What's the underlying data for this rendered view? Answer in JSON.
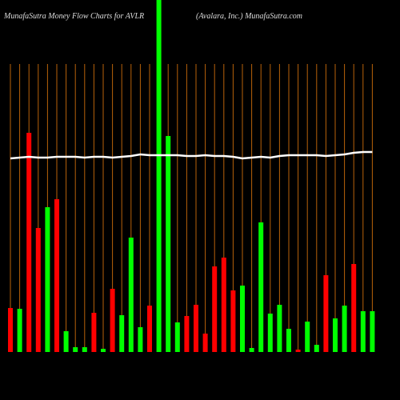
{
  "chart_data": {
    "type": "bar",
    "title": "MunafaSutra  Money Flow  Charts for AVLR",
    "subtitle": "(Avalara,  Inc.) MunafaSutra.com",
    "categories": [
      null,
      null,
      null,
      null,
      null,
      null,
      null,
      null,
      null,
      null,
      null,
      null,
      null,
      null,
      null,
      null,
      null,
      null,
      null,
      null,
      null,
      null,
      null,
      null,
      null,
      null,
      null,
      null,
      null,
      null,
      null,
      null,
      null,
      null,
      null,
      null,
      null,
      null,
      null,
      null
    ],
    "values": [
      55,
      54,
      274,
      155,
      181,
      191,
      26,
      6,
      6,
      49,
      4,
      79,
      46,
      143,
      31,
      58,
      440,
      270,
      37,
      45,
      59,
      23,
      107,
      118,
      77,
      83,
      5,
      162,
      48,
      59,
      29,
      3,
      38,
      9,
      96,
      42,
      58,
      110,
      51,
      51
    ],
    "colors": [
      "#ff0000",
      "#00ff00",
      "#ff0000",
      "#ff0000",
      "#00ff00",
      "#ff0000",
      "#00ff00",
      "#00ff00",
      "#00ff00",
      "#ff0000",
      "#00ff00",
      "#ff0000",
      "#00ff00",
      "#00ff00",
      "#00ff00",
      "#ff0000",
      "#00ff00",
      "#00ff00",
      "#00ff00",
      "#ff0000",
      "#ff0000",
      "#ff0000",
      "#ff0000",
      "#ff0000",
      "#ff0000",
      "#00ff00",
      "#00ff00",
      "#00ff00",
      "#00ff00",
      "#00ff00",
      "#00ff00",
      "#ff0000",
      "#00ff00",
      "#00ff00",
      "#ff0000",
      "#00ff00",
      "#00ff00",
      "#ff0000",
      "#00ff00",
      "#00ff00"
    ],
    "line": {
      "color": "#ffffff",
      "values": [
        242,
        243,
        244,
        243,
        243,
        244,
        244,
        244,
        243,
        244,
        244,
        243,
        244,
        245,
        247,
        246,
        246,
        246,
        246,
        245,
        245,
        246,
        245,
        245,
        244,
        242,
        243,
        244,
        243,
        245,
        246,
        246,
        246,
        246,
        245,
        246,
        247,
        249,
        250,
        250
      ]
    },
    "ylim": [
      0,
      440
    ],
    "grid_color": "#b8620a"
  }
}
